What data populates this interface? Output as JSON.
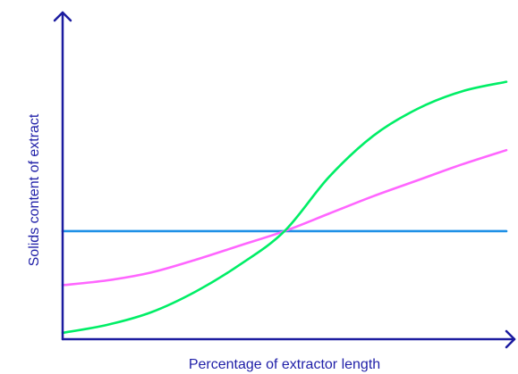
{
  "chart_data": {
    "type": "line",
    "title": "",
    "xlabel": "Percentage of extractor length",
    "ylabel": "Solids content of extract",
    "xlim": [
      0,
      100
    ],
    "ylim": [
      0,
      100
    ],
    "grid": false,
    "legend": "none",
    "series": [
      {
        "color": "#1e90e6",
        "x": [
          0,
          25,
          50,
          75,
          100
        ],
        "y": [
          34,
          34,
          34,
          34,
          34
        ]
      },
      {
        "color": "#ff66ff",
        "x": [
          0,
          10,
          20,
          30,
          40,
          50,
          60,
          70,
          80,
          90,
          100
        ],
        "y": [
          17,
          18.5,
          21,
          25,
          29.5,
          34,
          39.5,
          45,
          50,
          55,
          59.5
        ]
      },
      {
        "color": "#00ee66",
        "x": [
          0,
          10,
          20,
          30,
          40,
          50,
          60,
          70,
          80,
          90,
          100
        ],
        "y": [
          2,
          4.5,
          8.5,
          15,
          23.5,
          34,
          51,
          64,
          72.5,
          78,
          81
        ]
      }
    ]
  }
}
